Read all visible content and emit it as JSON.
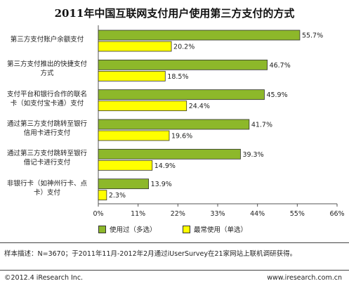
{
  "chart_data": {
    "type": "bar",
    "orientation": "horizontal",
    "title": "2011年中国互联网支付用户使用第三方支付的方式",
    "categories": [
      "第三方支付账户余额支付",
      "第三方支付推出的快捷支付\n方式",
      "支付平台和银行合作的联名\n卡（如支付宝卡通）支付",
      "通过第三方支付跳转至银行\n信用卡进行支付",
      "通过第三方支付跳转至银行\n借记卡进行支付",
      "非银行卡（如神州行卡、点\n卡）支付"
    ],
    "series": [
      {
        "name": "使用过（多选）",
        "values": [
          55.7,
          46.7,
          45.9,
          41.7,
          39.3,
          13.9
        ],
        "color": "#8db82a"
      },
      {
        "name": "最常使用（单选）",
        "values": [
          20.2,
          18.5,
          24.4,
          19.6,
          14.9,
          2.3
        ],
        "color": "#ffff00"
      }
    ],
    "xlim": [
      0,
      66
    ],
    "ticks": [
      0,
      11,
      22,
      33,
      44,
      55,
      66
    ],
    "tick_labels": [
      "0%",
      "11%",
      "22%",
      "33%",
      "44%",
      "55%",
      "66%"
    ],
    "value_labels": [
      [
        "55.7%",
        "46.7%",
        "45.9%",
        "41.7%",
        "39.3%",
        "13.9%"
      ],
      [
        "20.2%",
        "18.5%",
        "24.4%",
        "19.6%",
        "14.9%",
        "2.3%"
      ]
    ],
    "legend_position": "bottom"
  },
  "note": "样本描述：N=3670；于2011年11月-2012年2月通过iUserSurvey在21家网站上联机调研获得。",
  "footer": {
    "copyright": "©2012.4 iResearch Inc.",
    "website": "www.iresearch.com.cn"
  }
}
